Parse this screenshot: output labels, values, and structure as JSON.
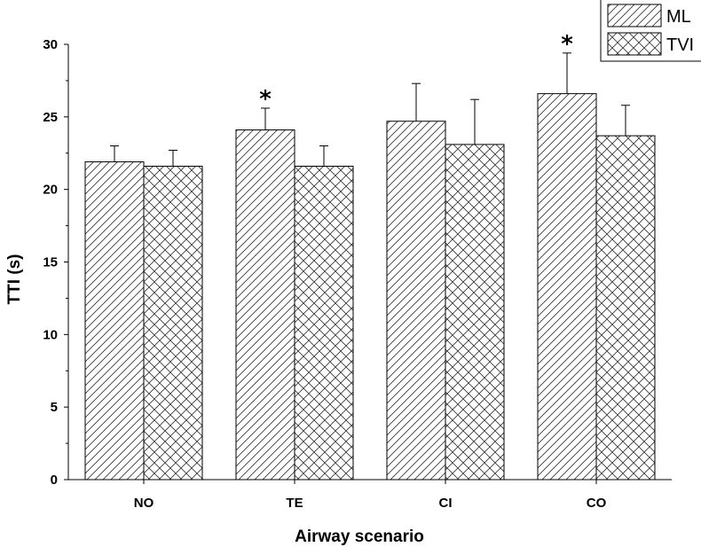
{
  "chart_data": {
    "type": "bar",
    "title": "",
    "xlabel": "Airway scenario",
    "ylabel": "TTI (s)",
    "ylim": [
      0,
      30
    ],
    "yticks": [
      "0",
      "5",
      "10",
      "15",
      "20",
      "25",
      "30"
    ],
    "categories": [
      "NO",
      "TE",
      "CI",
      "CO"
    ],
    "series": [
      {
        "name": "ML",
        "pattern": "diagonal-hatch",
        "values": [
          21.9,
          24.1,
          24.7,
          26.6
        ],
        "errors": [
          1.1,
          1.5,
          2.6,
          2.8
        ]
      },
      {
        "name": "TVI",
        "pattern": "cross-hatch",
        "values": [
          21.6,
          21.6,
          23.1,
          23.7
        ],
        "errors": [
          1.1,
          1.4,
          3.1,
          2.1
        ]
      }
    ],
    "annotations": [
      {
        "category": "TE",
        "series": "ML",
        "text": "*"
      },
      {
        "category": "CO",
        "series": "ML",
        "text": "*"
      }
    ],
    "legend_position": "top-right",
    "grid": false
  }
}
